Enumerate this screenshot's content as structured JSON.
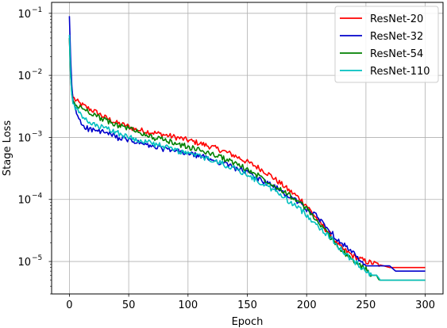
{
  "chart_data": {
    "type": "line",
    "xlabel": "Epoch",
    "ylabel": "Stage Loss",
    "xlim": [
      -15,
      315
    ],
    "ylim": [
      3e-06,
      0.15
    ],
    "yscale": "log",
    "grid": true,
    "legend_position": "top-right",
    "x_ticks": [
      0,
      50,
      100,
      150,
      200,
      250,
      300
    ],
    "x_tick_labels": [
      "0",
      "50",
      "100",
      "150",
      "200",
      "250",
      "300"
    ],
    "y_ticks": [
      1e-05,
      0.0001,
      0.001,
      0.01,
      0.1
    ],
    "y_tick_labels": [
      {
        "base": "10",
        "exp": "−5"
      },
      {
        "base": "10",
        "exp": "−4"
      },
      {
        "base": "10",
        "exp": "−3"
      },
      {
        "base": "10",
        "exp": "−2"
      },
      {
        "base": "10",
        "exp": "−1"
      }
    ],
    "series": [
      {
        "name": "ResNet-20",
        "color": "#ff0000",
        "points": [
          [
            0,
            0.04
          ],
          [
            1,
            0.012
          ],
          [
            2,
            0.006
          ],
          [
            3,
            0.0045
          ],
          [
            5,
            0.004
          ],
          [
            8,
            0.0036
          ],
          [
            10,
            0.0034
          ],
          [
            15,
            0.003
          ],
          [
            20,
            0.0027
          ],
          [
            25,
            0.0024
          ],
          [
            30,
            0.0021
          ],
          [
            35,
            0.0019
          ],
          [
            40,
            0.0017
          ],
          [
            45,
            0.0016
          ],
          [
            50,
            0.0015
          ],
          [
            55,
            0.00135
          ],
          [
            60,
            0.0013
          ],
          [
            65,
            0.00125
          ],
          [
            70,
            0.0012
          ],
          [
            75,
            0.00115
          ],
          [
            80,
            0.0011
          ],
          [
            85,
            0.00105
          ],
          [
            90,
            0.001
          ],
          [
            95,
            0.00095
          ],
          [
            100,
            0.0009
          ],
          [
            105,
            0.00085
          ],
          [
            110,
            0.0008
          ],
          [
            115,
            0.00075
          ],
          [
            120,
            0.0007
          ],
          [
            125,
            0.00065
          ],
          [
            130,
            0.0006
          ],
          [
            135,
            0.00055
          ],
          [
            140,
            0.0005
          ],
          [
            145,
            0.00045
          ],
          [
            150,
            0.0004
          ],
          [
            155,
            0.00036
          ],
          [
            160,
            0.00032
          ],
          [
            165,
            0.00028
          ],
          [
            170,
            0.00024
          ],
          [
            175,
            0.0002
          ],
          [
            180,
            0.00017
          ],
          [
            185,
            0.00014
          ],
          [
            190,
            0.00012
          ],
          [
            195,
            0.0001
          ],
          [
            200,
            8e-05
          ],
          [
            205,
            6e-05
          ],
          [
            210,
            4.5e-05
          ],
          [
            215,
            3.5e-05
          ],
          [
            220,
            2.7e-05
          ],
          [
            225,
            2e-05
          ],
          [
            230,
            1.6e-05
          ],
          [
            235,
            1.4e-05
          ],
          [
            240,
            1.2e-05
          ],
          [
            245,
            1.1e-05
          ],
          [
            250,
            1e-05
          ],
          [
            255,
            9.5e-06
          ],
          [
            260,
            9e-06
          ],
          [
            265,
            8.5e-06
          ],
          [
            270,
            8e-06
          ],
          [
            280,
            8e-06
          ],
          [
            290,
            8e-06
          ],
          [
            300,
            8e-06
          ]
        ]
      },
      {
        "name": "ResNet-32",
        "color": "#0000cc",
        "points": [
          [
            0,
            0.09
          ],
          [
            1,
            0.02
          ],
          [
            2,
            0.007
          ],
          [
            3,
            0.004
          ],
          [
            5,
            0.0028
          ],
          [
            8,
            0.002
          ],
          [
            10,
            0.0017
          ],
          [
            15,
            0.0014
          ],
          [
            20,
            0.0013
          ],
          [
            25,
            0.00125
          ],
          [
            30,
            0.0012
          ],
          [
            35,
            0.0011
          ],
          [
            40,
            0.001
          ],
          [
            45,
            0.00095
          ],
          [
            50,
            0.0009
          ],
          [
            55,
            0.00085
          ],
          [
            60,
            0.0008
          ],
          [
            65,
            0.00075
          ],
          [
            70,
            0.0007
          ],
          [
            75,
            0.00068
          ],
          [
            80,
            0.00065
          ],
          [
            85,
            0.00062
          ],
          [
            90,
            0.0006
          ],
          [
            95,
            0.00057
          ],
          [
            100,
            0.00055
          ],
          [
            105,
            0.00052
          ],
          [
            110,
            0.0005
          ],
          [
            115,
            0.00047
          ],
          [
            120,
            0.00044
          ],
          [
            125,
            0.00041
          ],
          [
            130,
            0.00038
          ],
          [
            135,
            0.00035
          ],
          [
            140,
            0.00032
          ],
          [
            145,
            0.0003
          ],
          [
            150,
            0.00027
          ],
          [
            155,
            0.00024
          ],
          [
            160,
            0.00021
          ],
          [
            165,
            0.00019
          ],
          [
            170,
            0.00017
          ],
          [
            175,
            0.00015
          ],
          [
            180,
            0.00013
          ],
          [
            185,
            0.00011
          ],
          [
            190,
            0.0001
          ],
          [
            195,
            8.5e-05
          ],
          [
            200,
            7e-05
          ],
          [
            205,
            6e-05
          ],
          [
            210,
            5e-05
          ],
          [
            215,
            4e-05
          ],
          [
            220,
            3e-05
          ],
          [
            225,
            2.4e-05
          ],
          [
            230,
            2e-05
          ],
          [
            235,
            1.6e-05
          ],
          [
            240,
            1.3e-05
          ],
          [
            245,
            1e-05
          ],
          [
            250,
            8.5e-06
          ],
          [
            255,
            8.5e-06
          ],
          [
            260,
            8.5e-06
          ],
          [
            265,
            8.5e-06
          ],
          [
            270,
            8.5e-06
          ],
          [
            275,
            7e-06
          ],
          [
            285,
            7e-06
          ],
          [
            300,
            7e-06
          ]
        ]
      },
      {
        "name": "ResNet-54",
        "color": "#008000",
        "points": [
          [
            0,
            0.04
          ],
          [
            1,
            0.01
          ],
          [
            2,
            0.005
          ],
          [
            3,
            0.0038
          ],
          [
            5,
            0.0033
          ],
          [
            8,
            0.0031
          ],
          [
            10,
            0.003
          ],
          [
            15,
            0.0027
          ],
          [
            20,
            0.0024
          ],
          [
            25,
            0.0021
          ],
          [
            30,
            0.0019
          ],
          [
            35,
            0.0017
          ],
          [
            40,
            0.0016
          ],
          [
            45,
            0.0015
          ],
          [
            50,
            0.0014
          ],
          [
            55,
            0.0013
          ],
          [
            60,
            0.0012
          ],
          [
            65,
            0.0011
          ],
          [
            70,
            0.001
          ],
          [
            75,
            0.00095
          ],
          [
            80,
            0.0009
          ],
          [
            85,
            0.00085
          ],
          [
            90,
            0.0008
          ],
          [
            95,
            0.00075
          ],
          [
            100,
            0.0007
          ],
          [
            105,
            0.00066
          ],
          [
            110,
            0.00062
          ],
          [
            115,
            0.00058
          ],
          [
            120,
            0.00054
          ],
          [
            125,
            0.0005
          ],
          [
            130,
            0.00046
          ],
          [
            135,
            0.00042
          ],
          [
            140,
            0.00038
          ],
          [
            145,
            0.00034
          ],
          [
            150,
            0.0003
          ],
          [
            155,
            0.00027
          ],
          [
            160,
            0.00024
          ],
          [
            165,
            0.00021
          ],
          [
            170,
            0.00018
          ],
          [
            175,
            0.00016
          ],
          [
            180,
            0.00014
          ],
          [
            185,
            0.00012
          ],
          [
            190,
            0.0001
          ],
          [
            195,
            8.5e-05
          ],
          [
            200,
            7e-05
          ],
          [
            205,
            5.5e-05
          ],
          [
            210,
            4.2e-05
          ],
          [
            215,
            3.2e-05
          ],
          [
            220,
            2.5e-05
          ],
          [
            225,
            1.9e-05
          ],
          [
            230,
            1.5e-05
          ],
          [
            235,
            1.2e-05
          ],
          [
            240,
            1e-05
          ],
          [
            245,
            8.5e-06
          ],
          [
            250,
            7.5e-06
          ],
          [
            255,
            6e-06
          ],
          [
            260,
            6e-06
          ],
          [
            262,
            5e-06
          ],
          [
            270,
            5e-06
          ],
          [
            285,
            5e-06
          ],
          [
            300,
            5e-06
          ]
        ]
      },
      {
        "name": "ResNet-110",
        "color": "#00bfbf",
        "points": [
          [
            0,
            0.045
          ],
          [
            1,
            0.01
          ],
          [
            2,
            0.005
          ],
          [
            3,
            0.0035
          ],
          [
            5,
            0.003
          ],
          [
            8,
            0.0025
          ],
          [
            10,
            0.0022
          ],
          [
            15,
            0.0018
          ],
          [
            20,
            0.0016
          ],
          [
            25,
            0.0015
          ],
          [
            30,
            0.0014
          ],
          [
            35,
            0.0013
          ],
          [
            40,
            0.0012
          ],
          [
            45,
            0.0011
          ],
          [
            50,
            0.001
          ],
          [
            55,
            0.00095
          ],
          [
            60,
            0.0009
          ],
          [
            65,
            0.00085
          ],
          [
            70,
            0.0008
          ],
          [
            75,
            0.00075
          ],
          [
            80,
            0.0007
          ],
          [
            85,
            0.00066
          ],
          [
            90,
            0.00062
          ],
          [
            95,
            0.00058
          ],
          [
            100,
            0.00055
          ],
          [
            105,
            0.00052
          ],
          [
            110,
            0.00049
          ],
          [
            115,
            0.00046
          ],
          [
            120,
            0.00043
          ],
          [
            125,
            0.0004
          ],
          [
            130,
            0.00037
          ],
          [
            135,
            0.00034
          ],
          [
            140,
            0.00031
          ],
          [
            145,
            0.00028
          ],
          [
            150,
            0.00025
          ],
          [
            155,
            0.00022
          ],
          [
            160,
            0.00019
          ],
          [
            165,
            0.00017
          ],
          [
            170,
            0.00015
          ],
          [
            175,
            0.00013
          ],
          [
            180,
            0.00011
          ],
          [
            185,
            9.5e-05
          ],
          [
            190,
            8e-05
          ],
          [
            195,
            6.8e-05
          ],
          [
            200,
            5.6e-05
          ],
          [
            205,
            4.6e-05
          ],
          [
            210,
            3.7e-05
          ],
          [
            215,
            3e-05
          ],
          [
            220,
            2.4e-05
          ],
          [
            225,
            1.9e-05
          ],
          [
            230,
            1.5e-05
          ],
          [
            235,
            1.2e-05
          ],
          [
            240,
            1e-05
          ],
          [
            245,
            8.5e-06
          ],
          [
            250,
            7.2e-06
          ],
          [
            255,
            6e-06
          ],
          [
            260,
            6e-06
          ],
          [
            262,
            5e-06
          ],
          [
            270,
            5e-06
          ],
          [
            285,
            5e-06
          ],
          [
            300,
            5e-06
          ]
        ]
      }
    ]
  }
}
